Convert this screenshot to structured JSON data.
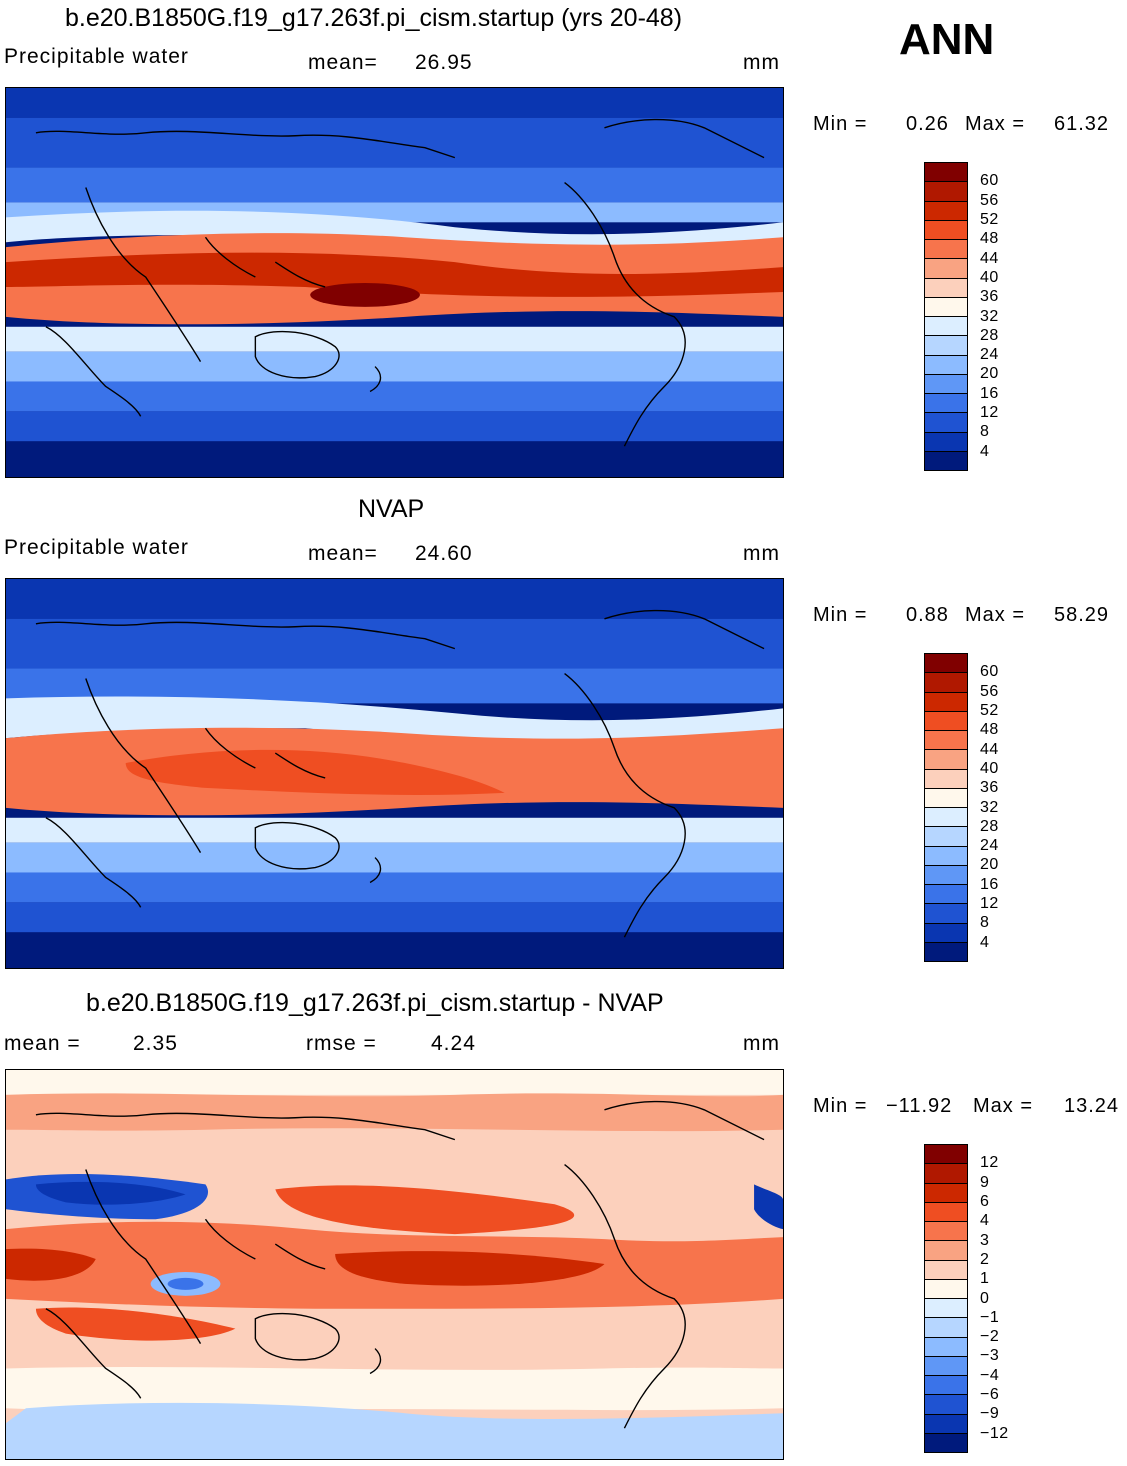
{
  "season": "ANN",
  "panels": [
    {
      "title": "b.e20.B1850G.f19_g17.263f.pi_cism.startup (yrs 20-48)",
      "field": "Precipitable water",
      "mean_label": "mean=",
      "mean_value": "26.95",
      "units": "mm",
      "min_label": "Min =",
      "min_value": "0.26",
      "max_label": "Max =",
      "max_value": "61.32",
      "ticks": [
        "60",
        "56",
        "52",
        "48",
        "44",
        "40",
        "36",
        "32",
        "28",
        "24",
        "20",
        "16",
        "12",
        "8",
        "4"
      ]
    },
    {
      "title": "NVAP",
      "field": "Precipitable water",
      "mean_label": "mean=",
      "mean_value": "24.60",
      "units": "mm",
      "min_label": "Min =",
      "min_value": "0.88",
      "max_label": "Max =",
      "max_value": "58.29",
      "ticks": [
        "60",
        "56",
        "52",
        "48",
        "44",
        "40",
        "36",
        "32",
        "28",
        "24",
        "20",
        "16",
        "12",
        "8",
        "4"
      ]
    },
    {
      "title": "b.e20.B1850G.f19_g17.263f.pi_cism.startup - NVAP",
      "mean_label": "mean =",
      "mean_value": "2.35",
      "rmse_label": "rmse =",
      "rmse_value": "4.24",
      "units": "mm",
      "min_label": "Min =",
      "min_value": "−11.92",
      "max_label": "Max =",
      "max_value": "13.24",
      "ticks": [
        "12",
        "9",
        "6",
        "4",
        "3",
        "2",
        "1",
        "0",
        "−1",
        "−2",
        "−3",
        "−4",
        "−6",
        "−9",
        "−12"
      ]
    }
  ],
  "colors": {
    "scale": [
      "#800000",
      "#b01800",
      "#cc2800",
      "#ef4e22",
      "#f7744c",
      "#f9a382",
      "#fcd0bc",
      "#fff8ec",
      "#dceeff",
      "#b6d6ff",
      "#8cbbff",
      "#5f97f6",
      "#3a73e9",
      "#1f53d2",
      "#0a36b1",
      "#001a7c"
    ],
    "coast": "#000000"
  }
}
